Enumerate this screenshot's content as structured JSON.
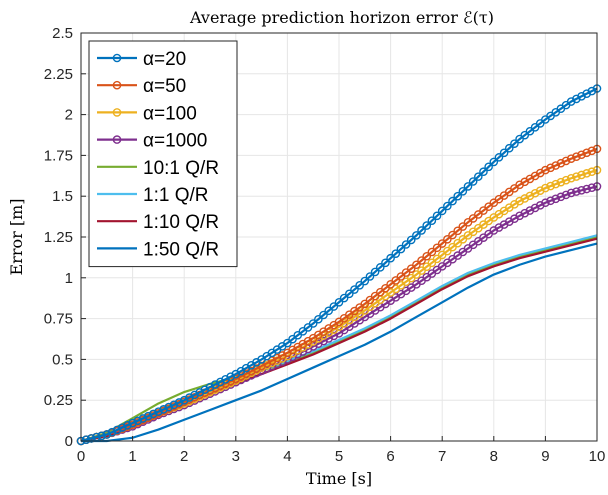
{
  "chart_data": {
    "type": "line",
    "title": "Average prediction horizon error ℰ(τ)",
    "xlabel": "Time [s]",
    "ylabel": "Error [m]",
    "xlim": [
      0,
      10
    ],
    "ylim": [
      0,
      2.5
    ],
    "grid": true,
    "legend_position": "top-left",
    "x_ticks": [
      "0",
      "1",
      "2",
      "3",
      "4",
      "5",
      "6",
      "7",
      "8",
      "9",
      "10"
    ],
    "y_ticks": [
      "0",
      "0.25",
      "0.5",
      "0.75",
      "1",
      "1.25",
      "1.5",
      "1.75",
      "2",
      "2.25",
      "2.5"
    ],
    "x": [
      0,
      0.5,
      1,
      1.5,
      2,
      2.5,
      3,
      3.5,
      4,
      4.5,
      5,
      5.5,
      6,
      6.5,
      7,
      7.5,
      8,
      8.5,
      9,
      9.5,
      10
    ],
    "series": [
      {
        "name": "α=20",
        "color": "#0072BD",
        "marker": true,
        "values": [
          0,
          0.04,
          0.11,
          0.18,
          0.25,
          0.33,
          0.41,
          0.5,
          0.6,
          0.72,
          0.85,
          0.98,
          1.12,
          1.26,
          1.41,
          1.56,
          1.71,
          1.85,
          1.97,
          2.08,
          2.16
        ]
      },
      {
        "name": "α=50",
        "color": "#D95319",
        "marker": true,
        "values": [
          0,
          0.04,
          0.1,
          0.17,
          0.24,
          0.31,
          0.38,
          0.46,
          0.54,
          0.63,
          0.73,
          0.84,
          0.96,
          1.08,
          1.21,
          1.34,
          1.46,
          1.57,
          1.66,
          1.73,
          1.79
        ]
      },
      {
        "name": "α=100",
        "color": "#EDB120",
        "marker": true,
        "values": [
          0,
          0.04,
          0.1,
          0.17,
          0.23,
          0.3,
          0.37,
          0.45,
          0.52,
          0.61,
          0.7,
          0.8,
          0.91,
          1.02,
          1.14,
          1.26,
          1.37,
          1.47,
          1.55,
          1.61,
          1.66
        ]
      },
      {
        "name": "α=1000",
        "color": "#7E2F8E",
        "marker": true,
        "values": [
          0,
          0.04,
          0.09,
          0.16,
          0.22,
          0.29,
          0.36,
          0.43,
          0.5,
          0.58,
          0.66,
          0.76,
          0.86,
          0.96,
          1.07,
          1.18,
          1.29,
          1.38,
          1.46,
          1.52,
          1.56
        ]
      },
      {
        "name": "10:1 Q/R",
        "color": "#77AC30",
        "marker": false,
        "values": [
          0,
          0.05,
          0.14,
          0.23,
          0.3,
          0.35,
          0.39,
          0.43,
          0.48,
          0.54,
          0.61,
          0.68,
          0.76,
          0.85,
          0.94,
          1.02,
          1.08,
          1.13,
          1.17,
          1.21,
          1.25
        ]
      },
      {
        "name": "1:1 Q/R",
        "color": "#4DBEEE",
        "marker": false,
        "values": [
          0,
          0.04,
          0.11,
          0.18,
          0.25,
          0.31,
          0.37,
          0.43,
          0.49,
          0.55,
          0.62,
          0.69,
          0.77,
          0.86,
          0.95,
          1.03,
          1.09,
          1.14,
          1.18,
          1.22,
          1.26
        ]
      },
      {
        "name": "1:10 Q/R",
        "color": "#A2142F",
        "marker": false,
        "values": [
          0,
          0.03,
          0.09,
          0.15,
          0.22,
          0.29,
          0.35,
          0.41,
          0.47,
          0.53,
          0.6,
          0.67,
          0.75,
          0.84,
          0.93,
          1.01,
          1.07,
          1.12,
          1.16,
          1.2,
          1.24
        ]
      },
      {
        "name": "1:50 Q/R",
        "color": "#0072BD",
        "marker": false,
        "values": [
          0,
          0.0,
          0.02,
          0.07,
          0.13,
          0.19,
          0.25,
          0.31,
          0.38,
          0.45,
          0.52,
          0.59,
          0.67,
          0.76,
          0.85,
          0.94,
          1.02,
          1.08,
          1.13,
          1.17,
          1.21
        ]
      }
    ]
  }
}
